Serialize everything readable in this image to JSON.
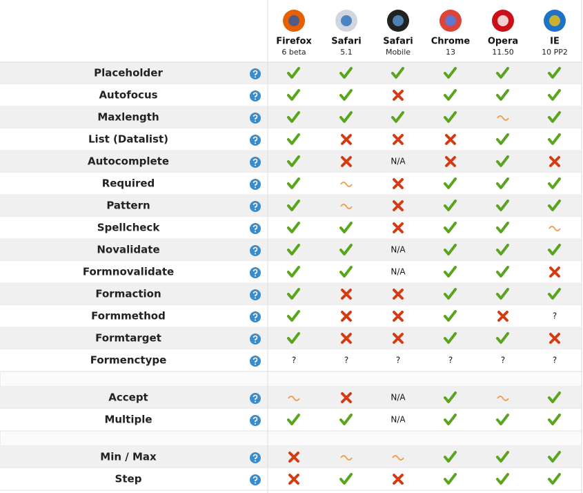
{
  "browsers": [
    {
      "name": "Firefox",
      "version": "6 beta"
    },
    {
      "name": "Safari",
      "version": "5.1"
    },
    {
      "name": "Safari",
      "version": "Mobile"
    },
    {
      "name": "Chrome",
      "version": "13"
    },
    {
      "name": "Opera",
      "version": "11.50"
    },
    {
      "name": "IE",
      "version": "10 PP2"
    }
  ],
  "groups": [
    {
      "rows": [
        {
          "feature": "Placeholder",
          "cells": [
            "yes",
            "yes",
            "yes",
            "yes",
            "yes",
            "yes"
          ]
        },
        {
          "feature": "Autofocus",
          "cells": [
            "yes",
            "yes",
            "no",
            "yes",
            "yes",
            "yes"
          ]
        },
        {
          "feature": "Maxlength",
          "cells": [
            "yes",
            "yes",
            "yes",
            "yes",
            "partial",
            "yes"
          ]
        },
        {
          "feature": "List (Datalist)",
          "cells": [
            "yes",
            "no",
            "no",
            "no",
            "yes",
            "yes"
          ]
        },
        {
          "feature": "Autocomplete",
          "cells": [
            "yes",
            "no",
            "N/A",
            "no",
            "yes",
            "no"
          ]
        },
        {
          "feature": "Required",
          "cells": [
            "yes",
            "partial",
            "no",
            "yes",
            "yes",
            "yes"
          ]
        },
        {
          "feature": "Pattern",
          "cells": [
            "yes",
            "partial",
            "no",
            "yes",
            "yes",
            "yes"
          ]
        },
        {
          "feature": "Spellcheck",
          "cells": [
            "yes",
            "yes",
            "no",
            "yes",
            "yes",
            "partial"
          ]
        },
        {
          "feature": "Novalidate",
          "cells": [
            "yes",
            "yes",
            "N/A",
            "yes",
            "yes",
            "yes"
          ]
        },
        {
          "feature": "Formnovalidate",
          "cells": [
            "yes",
            "yes",
            "N/A",
            "yes",
            "yes",
            "no"
          ]
        },
        {
          "feature": "Formaction",
          "cells": [
            "yes",
            "no",
            "no",
            "yes",
            "yes",
            "yes"
          ]
        },
        {
          "feature": "Formmethod",
          "cells": [
            "yes",
            "no",
            "no",
            "yes",
            "no",
            "?"
          ]
        },
        {
          "feature": "Formtarget",
          "cells": [
            "yes",
            "no",
            "no",
            "yes",
            "yes",
            "no"
          ]
        },
        {
          "feature": "Formenctype",
          "cells": [
            "?",
            "?",
            "?",
            "?",
            "?",
            "?"
          ]
        }
      ]
    },
    {
      "rows": [
        {
          "feature": "Accept",
          "cells": [
            "partial",
            "no",
            "N/A",
            "yes",
            "partial",
            "yes"
          ]
        },
        {
          "feature": "Multiple",
          "cells": [
            "yes",
            "yes",
            "N/A",
            "yes",
            "yes",
            "yes"
          ]
        }
      ]
    },
    {
      "rows": [
        {
          "feature": "Min / Max",
          "cells": [
            "no",
            "partial",
            "partial",
            "yes",
            "yes",
            "yes"
          ]
        },
        {
          "feature": "Step",
          "cells": [
            "no",
            "yes",
            "no",
            "yes",
            "yes",
            "yes"
          ]
        }
      ]
    }
  ]
}
